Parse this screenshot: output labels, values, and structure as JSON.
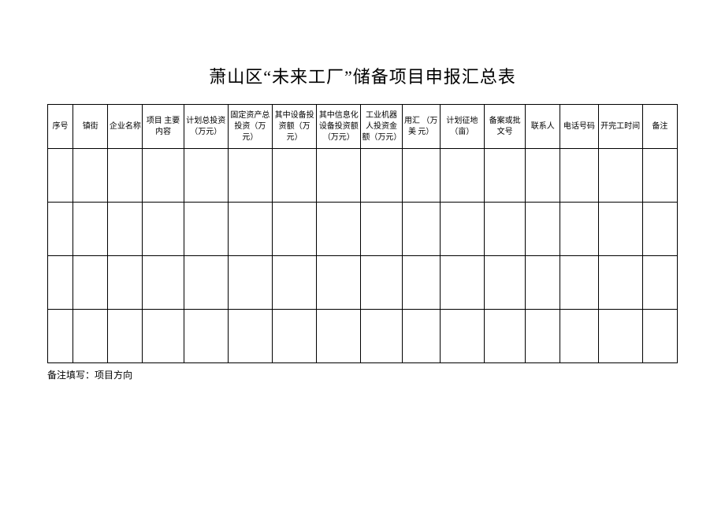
{
  "title": "萧山区“未来工厂”储备项目申报汇总表",
  "table": {
    "columns": [
      "序号",
      "镇街",
      "企业名称",
      "项目\n主要内容",
      "计划总投资\n（万元）",
      "固定资产总\n投资（万\n元）",
      "其中设备投\n资额（万\n元）",
      "其中信息化\n设备投资额\n（万元）",
      "工业机器\n人投资金\n额（万元）",
      "用汇\n（万美\n元）",
      "计划征地\n（亩）",
      "备案或批\n文号",
      "联系人",
      "电话号码",
      "开完工时间",
      "备注"
    ],
    "rows": [
      [
        "",
        "",
        "",
        "",
        "",
        "",
        "",
        "",
        "",
        "",
        "",
        "",
        "",
        "",
        "",
        ""
      ],
      [
        "",
        "",
        "",
        "",
        "",
        "",
        "",
        "",
        "",
        "",
        "",
        "",
        "",
        "",
        "",
        ""
      ],
      [
        "",
        "",
        "",
        "",
        "",
        "",
        "",
        "",
        "",
        "",
        "",
        "",
        "",
        "",
        "",
        ""
      ],
      [
        "",
        "",
        "",
        "",
        "",
        "",
        "",
        "",
        "",
        "",
        "",
        "",
        "",
        "",
        "",
        ""
      ]
    ]
  },
  "footnote": "备注填写：项目方向",
  "styling": {
    "background_color": "#ffffff",
    "border_color": "#000000",
    "text_color": "#000000",
    "title_fontsize": 22,
    "header_fontsize": 10,
    "footnote_fontsize": 12,
    "header_row_height": 56,
    "data_row_height": 68,
    "num_columns": 16,
    "num_data_rows": 4
  }
}
